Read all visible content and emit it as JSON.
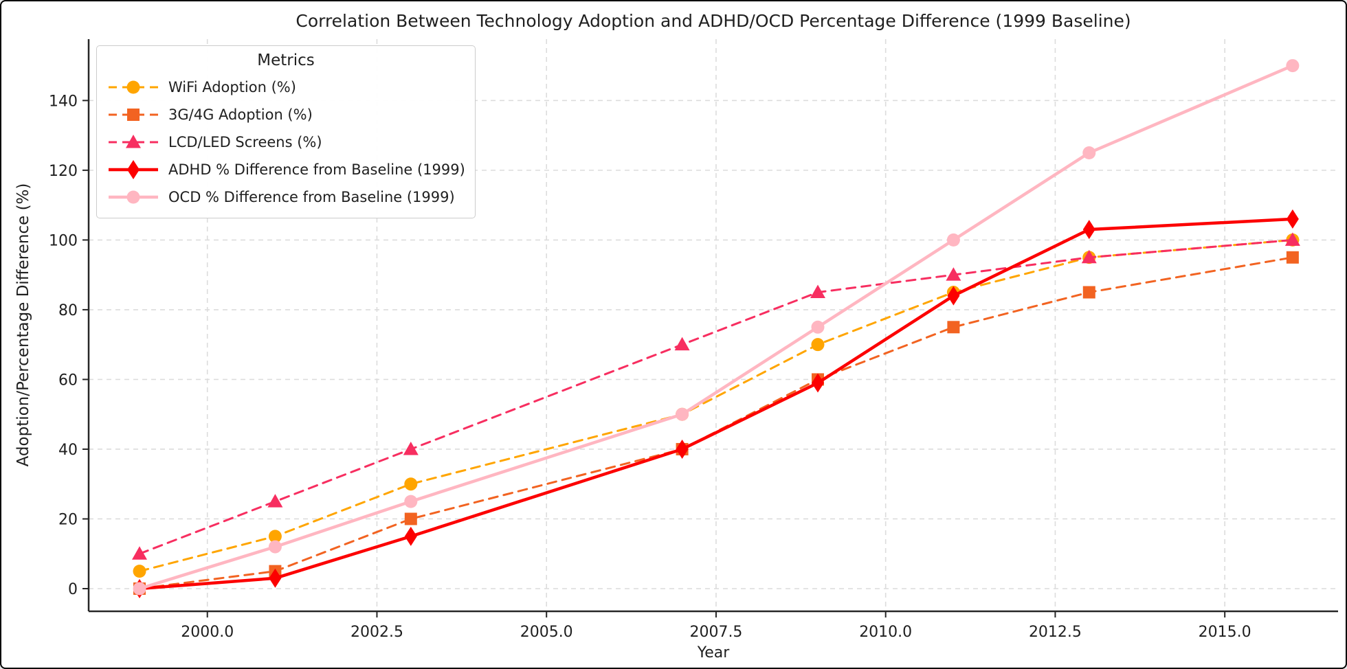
{
  "figure": {
    "title": "Correlation Between Technology Adoption and ADHD/OCD Percentage Difference (1999 Baseline)",
    "xlabel": "Year",
    "ylabel": "Adoption/Percentage Difference (%)",
    "background_color": "#ffffff",
    "grid_color": "#dcdcdc",
    "spine_color": "#262626",
    "text_color": "#1f1f1f",
    "legend": {
      "title": "Metrics"
    }
  },
  "chart_data": {
    "type": "line",
    "title": "Correlation Between Technology Adoption and ADHD/OCD Percentage Difference (1999 Baseline)",
    "xlabel": "Year",
    "ylabel": "Adoption/Percentage Difference (%)",
    "x": [
      1999,
      2001,
      2003,
      2007,
      2009,
      2011,
      2013,
      2016
    ],
    "series": [
      {
        "id": "wifi-adoption",
        "name": "WiFi Adoption (%)",
        "values": [
          5,
          15,
          30,
          50,
          70,
          85,
          95,
          100
        ],
        "color": "#FFA500",
        "line_style": "dashed",
        "marker": "circle"
      },
      {
        "id": "3g4g-adoption",
        "name": "3G/4G Adoption (%)",
        "values": [
          0,
          5,
          20,
          40,
          60,
          75,
          85,
          95
        ],
        "color": "#F26321",
        "line_style": "dashed",
        "marker": "square"
      },
      {
        "id": "lcd-led-screens",
        "name": "LCD/LED Screens (%)",
        "values": [
          10,
          25,
          40,
          70,
          85,
          90,
          95,
          100
        ],
        "color": "#F72E60",
        "line_style": "dashed",
        "marker": "triangle"
      },
      {
        "id": "adhd-difference",
        "name": "ADHD % Difference from Baseline (1999)",
        "values": [
          0,
          3,
          15,
          40,
          59,
          84,
          103,
          106
        ],
        "color": "#FC0000",
        "line_style": "solid",
        "marker": "thin-diamond"
      },
      {
        "id": "ocd-difference",
        "name": "OCD % Difference from Baseline (1999)",
        "values": [
          0,
          12,
          25,
          50,
          75,
          100,
          125,
          150
        ],
        "color": "#FFB6C1",
        "line_style": "solid",
        "marker": "circle"
      }
    ],
    "x_ticks": {
      "values": [
        2000.0,
        2002.5,
        2005.0,
        2007.5,
        2010.0,
        2012.5,
        2015.0
      ],
      "labels": [
        "2000.0",
        "2002.5",
        "2005.0",
        "2007.5",
        "2010.0",
        "2012.5",
        "2015.0"
      ]
    },
    "y_ticks": {
      "values": [
        0,
        20,
        40,
        60,
        80,
        100,
        120,
        140
      ],
      "labels": [
        "0",
        "20",
        "40",
        "60",
        "80",
        "100",
        "120",
        "140"
      ]
    },
    "xlim": [
      1998.25,
      2016.67
    ],
    "ylim": [
      -6.5,
      157.6
    ],
    "grid": true,
    "legend_position": "upper left",
    "legend_title": "Metrics"
  }
}
